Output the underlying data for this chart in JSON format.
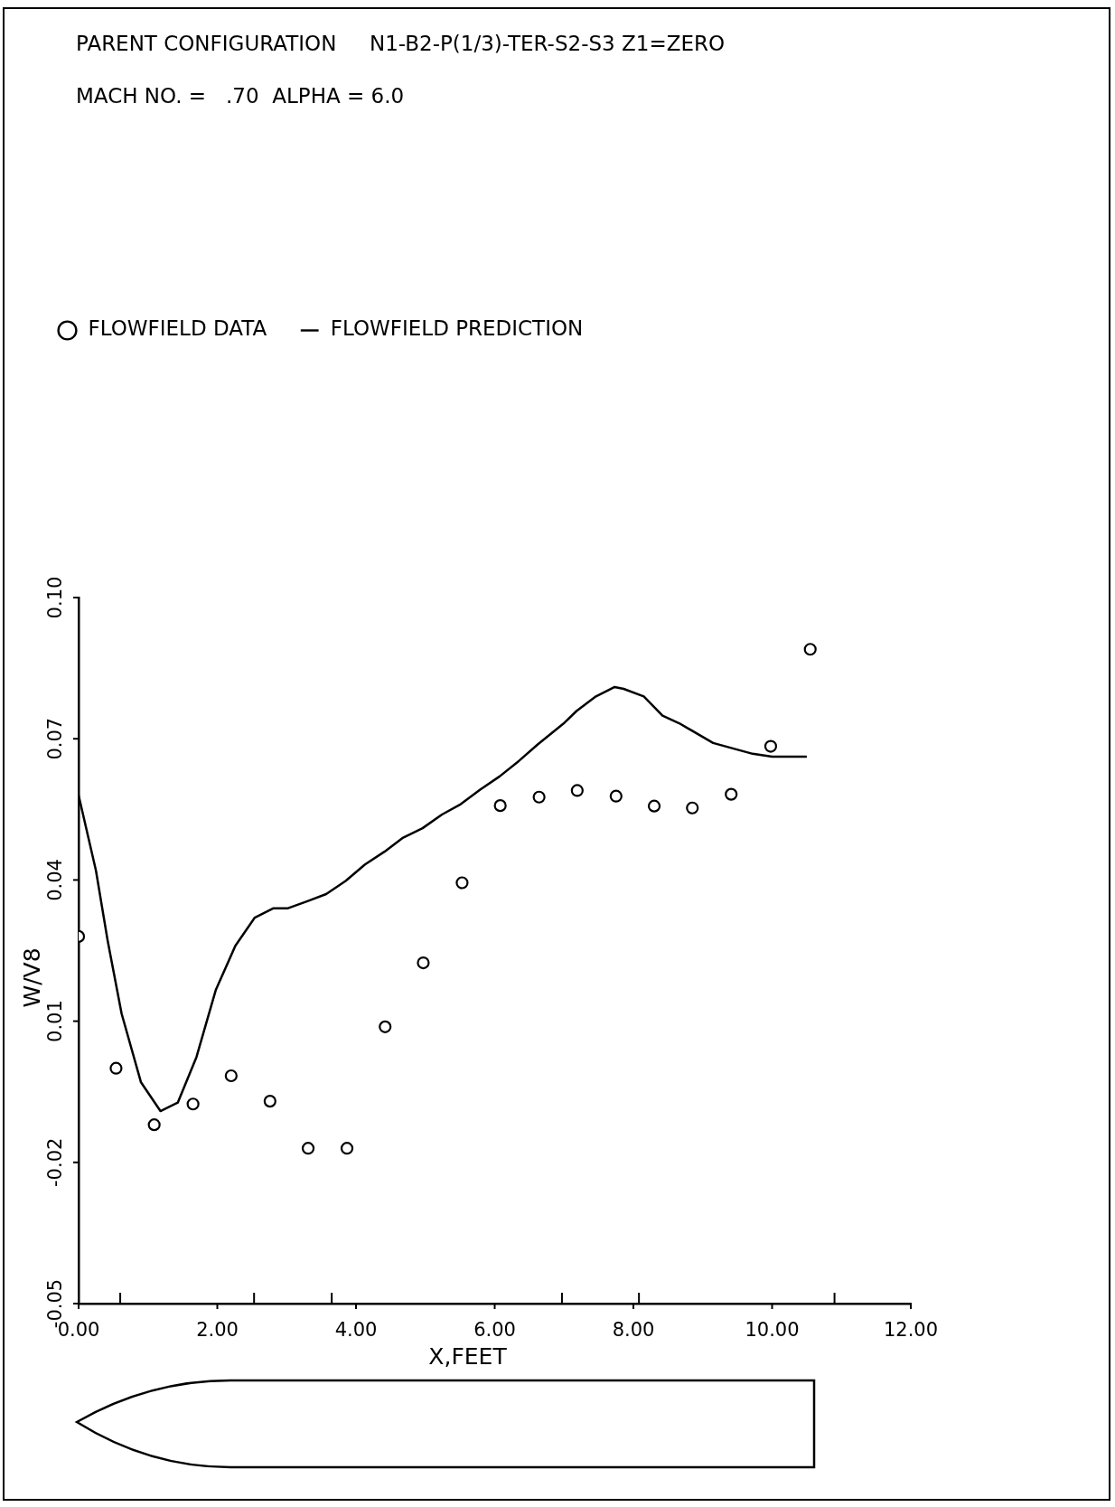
{
  "chart_data": {
    "type": "scatter",
    "title": "PARENT CONFIGURATION     N1-B2-P(1/3)-TER-S2-S3 Z1=ZERO",
    "subtitle": "MACH NO. =   .70  ALPHA = 6.0",
    "xlabel": "X,FEET",
    "ylabel": "W/V8",
    "xlim": [
      0,
      12
    ],
    "ylim": [
      -0.05,
      0.1
    ],
    "xticks": [
      {
        "value": 0,
        "label": "0.00"
      },
      {
        "value": 0.6,
        "label": null
      },
      {
        "value": 2,
        "label": "2.00"
      },
      {
        "value": 2.53,
        "label": null
      },
      {
        "value": 3.65,
        "label": null
      },
      {
        "value": 4,
        "label": "4.00"
      },
      {
        "value": 6,
        "label": "6.00"
      },
      {
        "value": 6.97,
        "label": null
      },
      {
        "value": 8,
        "label": "8.00"
      },
      {
        "value": 8.08,
        "label": null
      },
      {
        "value": 10,
        "label": "10.00"
      },
      {
        "value": 10.9,
        "label": null
      },
      {
        "value": 12,
        "label": "12.00"
      }
    ],
    "yticks": [
      {
        "value": -0.05,
        "label": "-0.05"
      },
      {
        "value": -0.02,
        "label": "-0.02"
      },
      {
        "value": 0.01,
        "label": "0.01"
      },
      {
        "value": 0.04,
        "label": "0.04"
      },
      {
        "value": 0.07,
        "label": "0.07"
      },
      {
        "value": 0.1,
        "label": "0.10"
      }
    ],
    "grid": false,
    "legend": "top left",
    "series": [
      {
        "name": "FLOWFIELD DATA",
        "color": "#000000",
        "marker": "circle",
        "x": [
          0,
          0.54,
          1.09,
          1.65,
          2.2,
          2.76,
          3.31,
          3.87,
          4.42,
          4.97,
          5.53,
          6.08,
          6.64,
          7.19,
          7.75,
          8.3,
          8.85,
          9.41,
          9.98,
          10.55
        ],
        "values": [
          0.028,
          0.0,
          -0.012,
          -0.0076,
          -0.0016,
          -0.007,
          -0.017,
          -0.017,
          0.0088,
          0.0224,
          0.0394,
          0.0558,
          0.0576,
          0.059,
          0.0578,
          0.0557,
          0.0553,
          0.0582,
          0.0684,
          0.089
        ]
      },
      {
        "name": "FLOWFIELD PREDICTION",
        "type": "line",
        "color": "#000000",
        "marker": "none",
        "line_style": "solid",
        "x": [
          0,
          0.25,
          0.42,
          0.62,
          0.9,
          1.18,
          1.43,
          1.7,
          1.98,
          2.26,
          2.54,
          2.81,
          3.02,
          3.3,
          3.57,
          3.85,
          4.13,
          4.41,
          4.68,
          4.96,
          5.24,
          5.51,
          5.79,
          6.07,
          6.35,
          6.62,
          6.99,
          7.18,
          7.46,
          7.73,
          7.86,
          8.15,
          8.42,
          8.66,
          9.15,
          9.72,
          10.0,
          10.5
        ],
        "values": [
          0.058,
          0.042,
          0.027,
          0.0116,
          -0.003,
          -0.0091,
          -0.0073,
          0.0024,
          0.0167,
          0.026,
          0.032,
          0.034,
          0.034,
          0.0355,
          0.037,
          0.0398,
          0.0433,
          0.046,
          0.049,
          0.051,
          0.0539,
          0.0561,
          0.0592,
          0.062,
          0.0653,
          0.0688,
          0.0732,
          0.0759,
          0.079,
          0.081,
          0.0806,
          0.079,
          0.0749,
          0.0733,
          0.0691,
          0.0668,
          0.0662,
          0.0662
        ]
      }
    ]
  }
}
